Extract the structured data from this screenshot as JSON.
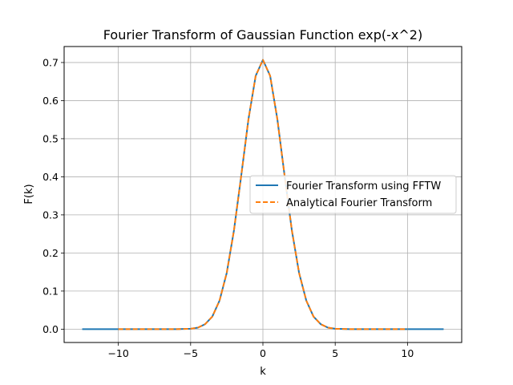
{
  "chart_data": {
    "type": "line",
    "title": "Fourier Transform of Gaussian Function exp(-x^2)",
    "xlabel": "k",
    "ylabel": "F(k)",
    "xlim": [
      -13.75,
      13.75
    ],
    "ylim": [
      -0.035,
      0.742
    ],
    "xticks": [
      -10,
      -5,
      0,
      5,
      10
    ],
    "xtick_labels": [
      "−10",
      "−5",
      "0",
      "5",
      "10"
    ],
    "yticks": [
      0.0,
      0.1,
      0.2,
      0.3,
      0.4,
      0.5,
      0.6,
      0.7
    ],
    "ytick_labels": [
      "0.0",
      "0.1",
      "0.2",
      "0.3",
      "0.4",
      "0.5",
      "0.6",
      "0.7"
    ],
    "grid": true,
    "legend_position": "center-right",
    "series": [
      {
        "name": "Fourier Transform using FFTW",
        "color": "#1f77b4",
        "style": "solid",
        "x": [
          -12.5,
          -10,
          -8,
          -6,
          -5,
          -4.5,
          -4,
          -3.5,
          -3,
          -2.5,
          -2,
          -1.5,
          -1,
          -0.5,
          0,
          0.5,
          1,
          1.5,
          2,
          2.5,
          3,
          3.5,
          4,
          4.5,
          5,
          6,
          8,
          10,
          12.5
        ],
        "y": [
          0.0,
          0.0,
          0.0,
          0.0,
          0.001,
          0.004,
          0.013,
          0.033,
          0.075,
          0.148,
          0.26,
          0.403,
          0.551,
          0.665,
          0.707,
          0.665,
          0.551,
          0.403,
          0.26,
          0.148,
          0.075,
          0.033,
          0.013,
          0.004,
          0.001,
          0.0,
          0.0,
          0.0,
          0.0
        ]
      },
      {
        "name": "Analytical Fourier Transform",
        "color": "#ff7f0e",
        "style": "dashed",
        "x": [
          -10,
          -8,
          -6,
          -5,
          -4.5,
          -4,
          -3.5,
          -3,
          -2.5,
          -2,
          -1.5,
          -1,
          -0.5,
          0,
          0.5,
          1,
          1.5,
          2,
          2.5,
          3,
          3.5,
          4,
          4.5,
          5,
          6,
          8,
          10
        ],
        "y": [
          0.0,
          0.0,
          0.0,
          0.001,
          0.004,
          0.013,
          0.033,
          0.075,
          0.148,
          0.26,
          0.403,
          0.551,
          0.665,
          0.707,
          0.665,
          0.551,
          0.403,
          0.26,
          0.148,
          0.075,
          0.033,
          0.013,
          0.004,
          0.001,
          0.0,
          0.0,
          0.0
        ]
      }
    ]
  }
}
